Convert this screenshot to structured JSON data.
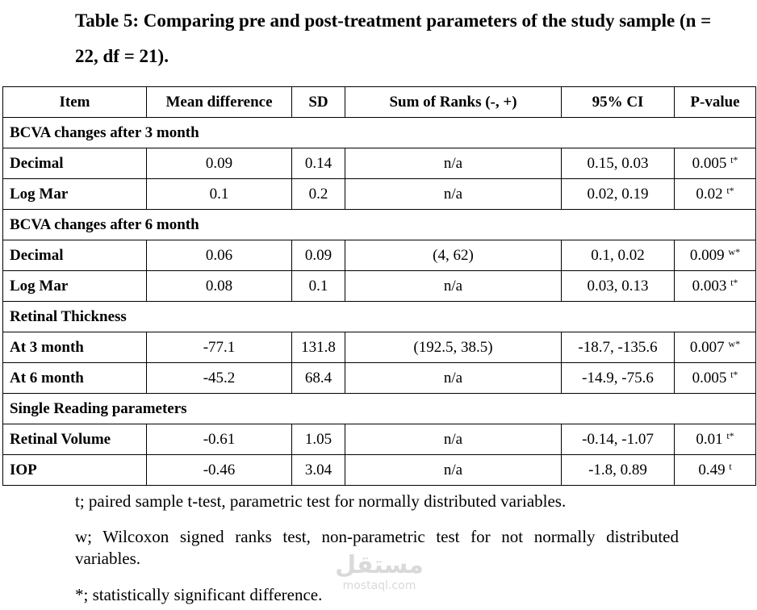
{
  "title": "Table 5: Comparing pre and post-treatment parameters of the study sample (n = 22, df = 21).",
  "table": {
    "headers": [
      "Item",
      "Mean difference",
      "SD",
      "Sum of Ranks (-, +)",
      "95% CI",
      "P-value"
    ],
    "sections": [
      {
        "label": "BCVA changes after 3 month",
        "rows": [
          {
            "item": "Decimal",
            "mean": "0.09",
            "sd": "0.14",
            "ranks": "n/a",
            "ci": "0.15, 0.03",
            "p": "0.005",
            "sup": "t*"
          },
          {
            "item": "Log Mar",
            "mean": "0.1",
            "sd": "0.2",
            "ranks": "n/a",
            "ci": "0.02, 0.19",
            "p": "0.02",
            "sup": "t*"
          }
        ]
      },
      {
        "label": "BCVA changes after 6 month",
        "rows": [
          {
            "item": "Decimal",
            "mean": "0.06",
            "sd": "0.09",
            "ranks": "(4, 62)",
            "ci": "0.1, 0.02",
            "p": "0.009",
            "sup": "w*"
          },
          {
            "item": "Log Mar",
            "mean": "0.08",
            "sd": "0.1",
            "ranks": "n/a",
            "ci": "0.03, 0.13",
            "p": "0.003",
            "sup": "t*"
          }
        ]
      },
      {
        "label": "Retinal Thickness",
        "rows": [
          {
            "item": "At 3 month",
            "mean": "-77.1",
            "sd": "131.8",
            "ranks": "(192.5, 38.5)",
            "ci": "-18.7, -135.6",
            "p": "0.007",
            "sup": "w*"
          },
          {
            "item": "At 6 month",
            "mean": "-45.2",
            "sd": "68.4",
            "ranks": "n/a",
            "ci": "-14.9, -75.6",
            "p": "0.005",
            "sup": "t*"
          }
        ]
      },
      {
        "label": "Single Reading parameters",
        "rows": [
          {
            "item": "Retinal Volume",
            "mean": "-0.61",
            "sd": "1.05",
            "ranks": "n/a",
            "ci": "-0.14, -1.07",
            "p": "0.01",
            "sup": "t*"
          },
          {
            "item": "IOP",
            "mean": "-0.46",
            "sd": "3.04",
            "ranks": "n/a",
            "ci": "-1.8, 0.89",
            "p": "0.49",
            "sup": "t"
          }
        ]
      }
    ]
  },
  "notes": {
    "t": "t; paired sample t-test, parametric test for normally distributed variables.",
    "w": "w; Wilcoxon signed ranks test, non-parametric test for not normally distributed variables.",
    "star": "*; statistically significant difference."
  },
  "watermark": {
    "logo": "مستقل",
    "url": "mostaql.com"
  }
}
